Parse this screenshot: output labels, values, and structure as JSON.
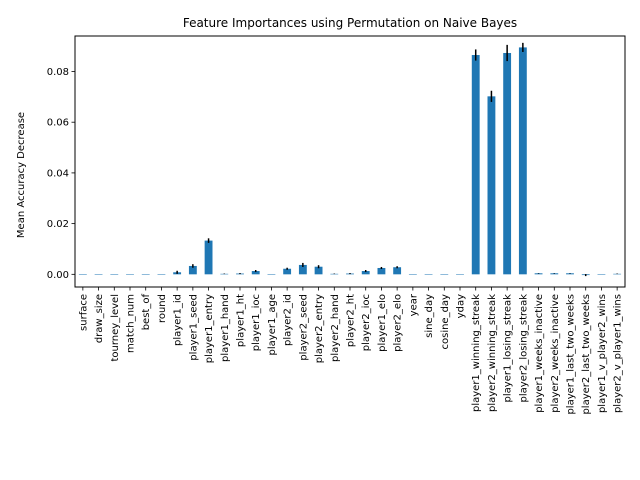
{
  "chart_data": {
    "type": "bar",
    "title": "Feature Importances using Permutation on Naive Bayes",
    "xlabel": "",
    "ylabel": "Mean Accuracy Decrease",
    "ylim": [
      -0.005,
      0.094
    ],
    "yticks": [
      0.0,
      0.02,
      0.04,
      0.06,
      0.08
    ],
    "ytick_labels": [
      "0.00",
      "0.02",
      "0.04",
      "0.06",
      "0.08"
    ],
    "grid": false,
    "bar_color": "#1f77b4",
    "categories": [
      "surface",
      "draw_size",
      "tourney_level",
      "match_num",
      "best_of",
      "round",
      "player1_id",
      "player1_seed",
      "player1_entry",
      "player1_hand",
      "player1_ht",
      "player1_ioc",
      "player1_age",
      "player2_id",
      "player2_seed",
      "player2_entry",
      "player2_hand",
      "player2_ht",
      "player2_ioc",
      "player1_elo",
      "player2_elo",
      "year",
      "sine_day",
      "cosine_day",
      "yday",
      "player1_winning_streak",
      "player2_winning_streak",
      "player1_losing_streak",
      "player2_losing_streak",
      "player1_weeks_inactive",
      "player2_weeks_inactive",
      "player1_last_two_weeks",
      "player2_last_two_weeks",
      "player1_v_player2_wins",
      "player2_v_player1_wins"
    ],
    "values": [
      0,
      0,
      0,
      0,
      0,
      0,
      0.0008,
      0.0033,
      0.0133,
      0.0002,
      0.0003,
      0.0013,
      0,
      0.0022,
      0.0037,
      0.003,
      0.0002,
      0.0003,
      0.0013,
      0.0025,
      0.0028,
      0,
      0,
      0,
      0,
      0.0865,
      0.0702,
      0.0873,
      0.0895,
      0.0004,
      0.0004,
      0.0004,
      -0.0003,
      0,
      0.0002
    ],
    "errors": [
      0,
      0,
      0,
      0,
      0,
      0,
      0.0006,
      0.0007,
      0.0009,
      0.0001,
      0.0002,
      0.0004,
      0,
      0.0004,
      0.0008,
      0.0006,
      0.0001,
      0.0002,
      0.0004,
      0.0004,
      0.0004,
      0,
      0,
      0,
      0,
      0.0022,
      0.0022,
      0.0032,
      0.0018,
      0.0001,
      0.0001,
      0.0001,
      0.0004,
      0,
      0.0001
    ]
  }
}
